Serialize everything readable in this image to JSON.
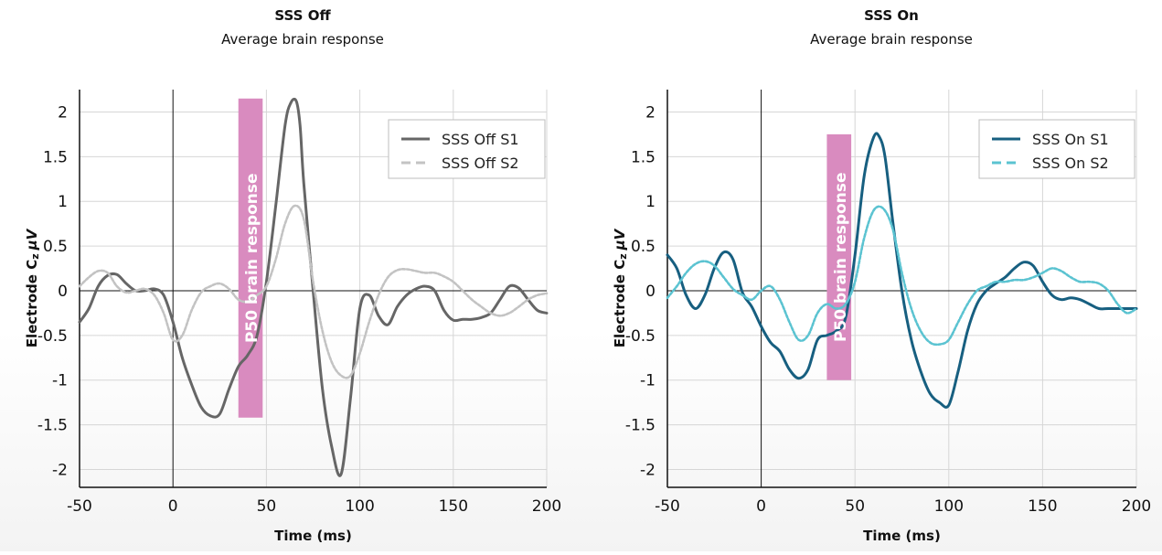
{
  "chart_data": [
    {
      "type": "line",
      "title": "SSS Off",
      "subtitle": "Average brain response",
      "xlabel": "Time (ms)",
      "ylabel_main": "Electrode C",
      "ylabel_sub": "z",
      "ylabel_unit": "μV",
      "xlim": [
        -50,
        200
      ],
      "ylim": [
        -2.2,
        2.25
      ],
      "xticks": [
        -50,
        0,
        50,
        100,
        150,
        200
      ],
      "yticks": [
        2,
        1.5,
        1,
        0.5,
        0,
        -0.5,
        -1,
        -1.5,
        -2
      ],
      "grid": true,
      "legend_position": "top-right",
      "highlight": {
        "label": "P50 brain response",
        "x_range": [
          35,
          48
        ],
        "y_range": [
          -1.42,
          2.15
        ],
        "color": "#d98bbf"
      },
      "series": [
        {
          "name": "SSS Off S1",
          "color": "#666666",
          "style": "solid",
          "x": [
            -50,
            -45,
            -40,
            -35,
            -30,
            -25,
            -20,
            -15,
            -10,
            -5,
            0,
            5,
            10,
            15,
            20,
            25,
            30,
            35,
            40,
            45,
            50,
            55,
            60,
            63,
            66,
            68,
            70,
            75,
            80,
            85,
            90,
            95,
            100,
            105,
            110,
            115,
            120,
            125,
            130,
            135,
            140,
            145,
            150,
            155,
            160,
            165,
            170,
            175,
            180,
            185,
            190,
            195,
            200
          ],
          "y": [
            -0.35,
            -0.2,
            0.05,
            0.17,
            0.18,
            0.08,
            0.0,
            0.0,
            0.02,
            -0.05,
            -0.35,
            -0.75,
            -1.05,
            -1.3,
            -1.4,
            -1.38,
            -1.1,
            -0.85,
            -0.72,
            -0.5,
            0.1,
            0.95,
            1.85,
            2.1,
            2.12,
            1.85,
            1.2,
            0.0,
            -1.1,
            -1.75,
            -2.05,
            -1.2,
            -0.2,
            -0.05,
            -0.28,
            -0.38,
            -0.18,
            -0.05,
            0.02,
            0.05,
            0.0,
            -0.22,
            -0.33,
            -0.32,
            -0.32,
            -0.3,
            -0.25,
            -0.1,
            0.05,
            0.03,
            -0.1,
            -0.22,
            -0.25
          ]
        },
        {
          "name": "SSS Off S2",
          "color": "#c3c3c3",
          "style": "dotted",
          "x": [
            -50,
            -45,
            -40,
            -35,
            -30,
            -25,
            -20,
            -15,
            -10,
            -5,
            0,
            5,
            10,
            15,
            20,
            25,
            30,
            35,
            40,
            45,
            50,
            55,
            60,
            65,
            70,
            75,
            80,
            85,
            90,
            95,
            100,
            105,
            110,
            115,
            120,
            125,
            130,
            135,
            140,
            145,
            150,
            155,
            160,
            165,
            170,
            175,
            180,
            185,
            190,
            195,
            200
          ],
          "y": [
            0.05,
            0.15,
            0.22,
            0.2,
            0.05,
            -0.02,
            0.0,
            0.02,
            -0.05,
            -0.25,
            -0.55,
            -0.5,
            -0.22,
            -0.02,
            0.05,
            0.08,
            0.02,
            -0.1,
            -0.12,
            -0.05,
            0.05,
            0.35,
            0.75,
            0.95,
            0.8,
            0.1,
            -0.45,
            -0.8,
            -0.95,
            -0.95,
            -0.7,
            -0.35,
            -0.05,
            0.15,
            0.23,
            0.24,
            0.22,
            0.2,
            0.2,
            0.16,
            0.1,
            0.0,
            -0.1,
            -0.18,
            -0.25,
            -0.28,
            -0.25,
            -0.18,
            -0.1,
            -0.05,
            -0.03
          ]
        }
      ]
    },
    {
      "type": "line",
      "title": "SSS On",
      "subtitle": "Average brain response",
      "xlabel": "Time (ms)",
      "ylabel_main": "Electrode C",
      "ylabel_sub": "z",
      "ylabel_unit": "μV",
      "xlim": [
        -50,
        200
      ],
      "ylim": [
        -2.2,
        2.25
      ],
      "xticks": [
        -50,
        0,
        50,
        100,
        150,
        200
      ],
      "yticks": [
        2,
        1.5,
        1,
        0.5,
        0,
        -0.5,
        -1,
        -1.5,
        -2
      ],
      "grid": true,
      "legend_position": "top-right",
      "highlight": {
        "label": "P50 brain response",
        "x_range": [
          35,
          48
        ],
        "y_range": [
          -1.0,
          1.75
        ],
        "color": "#d98bbf"
      },
      "series": [
        {
          "name": "SSS On S1",
          "color": "#175f80",
          "style": "solid",
          "x": [
            -50,
            -45,
            -40,
            -35,
            -30,
            -25,
            -20,
            -15,
            -10,
            -5,
            0,
            5,
            10,
            15,
            20,
            25,
            30,
            35,
            40,
            45,
            50,
            55,
            60,
            63,
            66,
            70,
            75,
            80,
            85,
            90,
            95,
            100,
            105,
            110,
            115,
            120,
            125,
            130,
            135,
            140,
            145,
            150,
            155,
            160,
            165,
            170,
            175,
            180,
            185,
            190,
            195,
            200
          ],
          "y": [
            0.4,
            0.25,
            -0.05,
            -0.2,
            -0.05,
            0.25,
            0.43,
            0.35,
            -0.02,
            -0.18,
            -0.4,
            -0.58,
            -0.68,
            -0.88,
            -0.98,
            -0.88,
            -0.55,
            -0.5,
            -0.45,
            -0.3,
            0.4,
            1.3,
            1.72,
            1.72,
            1.5,
            0.8,
            0.0,
            -0.55,
            -0.9,
            -1.15,
            -1.25,
            -1.28,
            -0.9,
            -0.45,
            -0.15,
            0.0,
            0.08,
            0.15,
            0.25,
            0.32,
            0.28,
            0.1,
            -0.05,
            -0.1,
            -0.08,
            -0.1,
            -0.15,
            -0.2,
            -0.2,
            -0.2,
            -0.2,
            -0.2
          ]
        },
        {
          "name": "SSS On S2",
          "color": "#5bc3d1",
          "style": "dotted",
          "x": [
            -50,
            -45,
            -40,
            -35,
            -30,
            -25,
            -20,
            -15,
            -10,
            -5,
            0,
            5,
            10,
            15,
            20,
            25,
            30,
            35,
            40,
            45,
            50,
            55,
            60,
            65,
            70,
            75,
            80,
            85,
            90,
            95,
            100,
            105,
            110,
            115,
            120,
            125,
            130,
            135,
            140,
            145,
            150,
            155,
            160,
            165,
            170,
            175,
            180,
            185,
            190,
            195,
            200
          ],
          "y": [
            -0.08,
            0.05,
            0.2,
            0.3,
            0.33,
            0.28,
            0.15,
            0.02,
            -0.05,
            -0.1,
            0.0,
            0.05,
            -0.1,
            -0.35,
            -0.55,
            -0.5,
            -0.25,
            -0.15,
            -0.2,
            -0.15,
            0.1,
            0.6,
            0.9,
            0.92,
            0.7,
            0.2,
            -0.2,
            -0.45,
            -0.58,
            -0.6,
            -0.55,
            -0.35,
            -0.15,
            0.0,
            0.05,
            0.1,
            0.1,
            0.12,
            0.12,
            0.15,
            0.2,
            0.25,
            0.22,
            0.15,
            0.1,
            0.1,
            0.08,
            0.0,
            -0.15,
            -0.25,
            -0.2
          ]
        }
      ]
    }
  ]
}
